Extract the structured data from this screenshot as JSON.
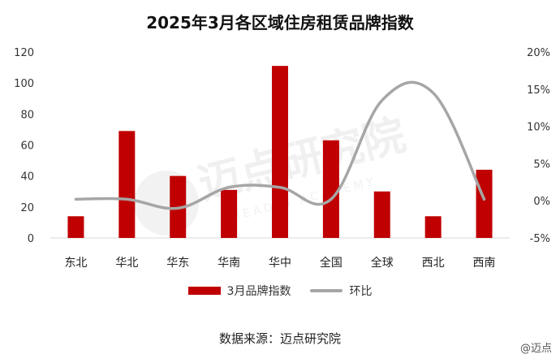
{
  "title": "2025年3月各区域住房租赁品牌指数",
  "source": "数据来源：迈点研究院",
  "watermark": "@迈点",
  "watermark_logo_text": "迈点研究院 MEADIN ACADEMY",
  "colors": {
    "bar": "#c00000",
    "line": "#a6a6a6",
    "grid": "#d9d9d9"
  },
  "chart_data": {
    "type": "bar",
    "categories": [
      "东北",
      "华北",
      "华东",
      "华南",
      "华中",
      "全国",
      "全球",
      "西北",
      "西南"
    ],
    "series": [
      {
        "name": "3月品牌指数",
        "type": "bar",
        "axis": "left",
        "values": [
          14,
          69,
          40,
          31,
          111,
          63,
          30,
          14,
          44
        ]
      },
      {
        "name": "环比",
        "type": "line",
        "axis": "right",
        "unit": "%",
        "values": [
          0.2,
          0.2,
          -1.0,
          1.8,
          1.8,
          0.2,
          13.5,
          14.5,
          0.2
        ]
      }
    ],
    "y_left": {
      "min": 0,
      "max": 120,
      "ticks": [
        "0",
        "20",
        "40",
        "60",
        "80",
        "100",
        "120"
      ]
    },
    "y_right": {
      "min": -5,
      "max": 20,
      "ticks": [
        "-5%",
        "0%",
        "5%",
        "10%",
        "15%",
        "20%"
      ]
    },
    "grid": false,
    "legend": "bottom"
  }
}
